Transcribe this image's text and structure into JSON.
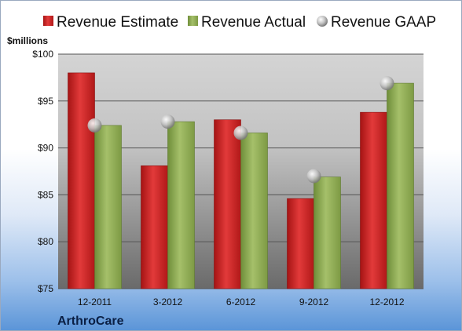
{
  "legend": {
    "estimate_label": "Revenue Estimate",
    "actual_label": "Revenue Actual",
    "gaap_label": "Revenue GAAP"
  },
  "unit_label": "$millions",
  "company": "ArthroCare",
  "colors": {
    "estimate": "#cc1f1f",
    "actual": "#8fae55",
    "gaap": "#b8b8b8"
  },
  "chart_data": {
    "type": "bar",
    "categories": [
      "12-2011",
      "3-2012",
      "6-2012",
      "9-2012",
      "12-2012"
    ],
    "series": [
      {
        "name": "Revenue Estimate",
        "values": [
          98.0,
          88.1,
          93.0,
          84.6,
          93.8
        ]
      },
      {
        "name": "Revenue Actual",
        "values": [
          92.4,
          92.8,
          91.6,
          86.9,
          96.9
        ]
      },
      {
        "name": "Revenue GAAP",
        "values": [
          92.4,
          92.8,
          91.6,
          87.0,
          96.9
        ]
      }
    ],
    "ylim": [
      75,
      100
    ],
    "y_ticks": [
      75,
      80,
      85,
      90,
      95,
      100
    ],
    "y_tick_labels": [
      "$75",
      "$80",
      "$85",
      "$90",
      "$95",
      "$100"
    ],
    "grid": true,
    "legend_position": "top"
  }
}
